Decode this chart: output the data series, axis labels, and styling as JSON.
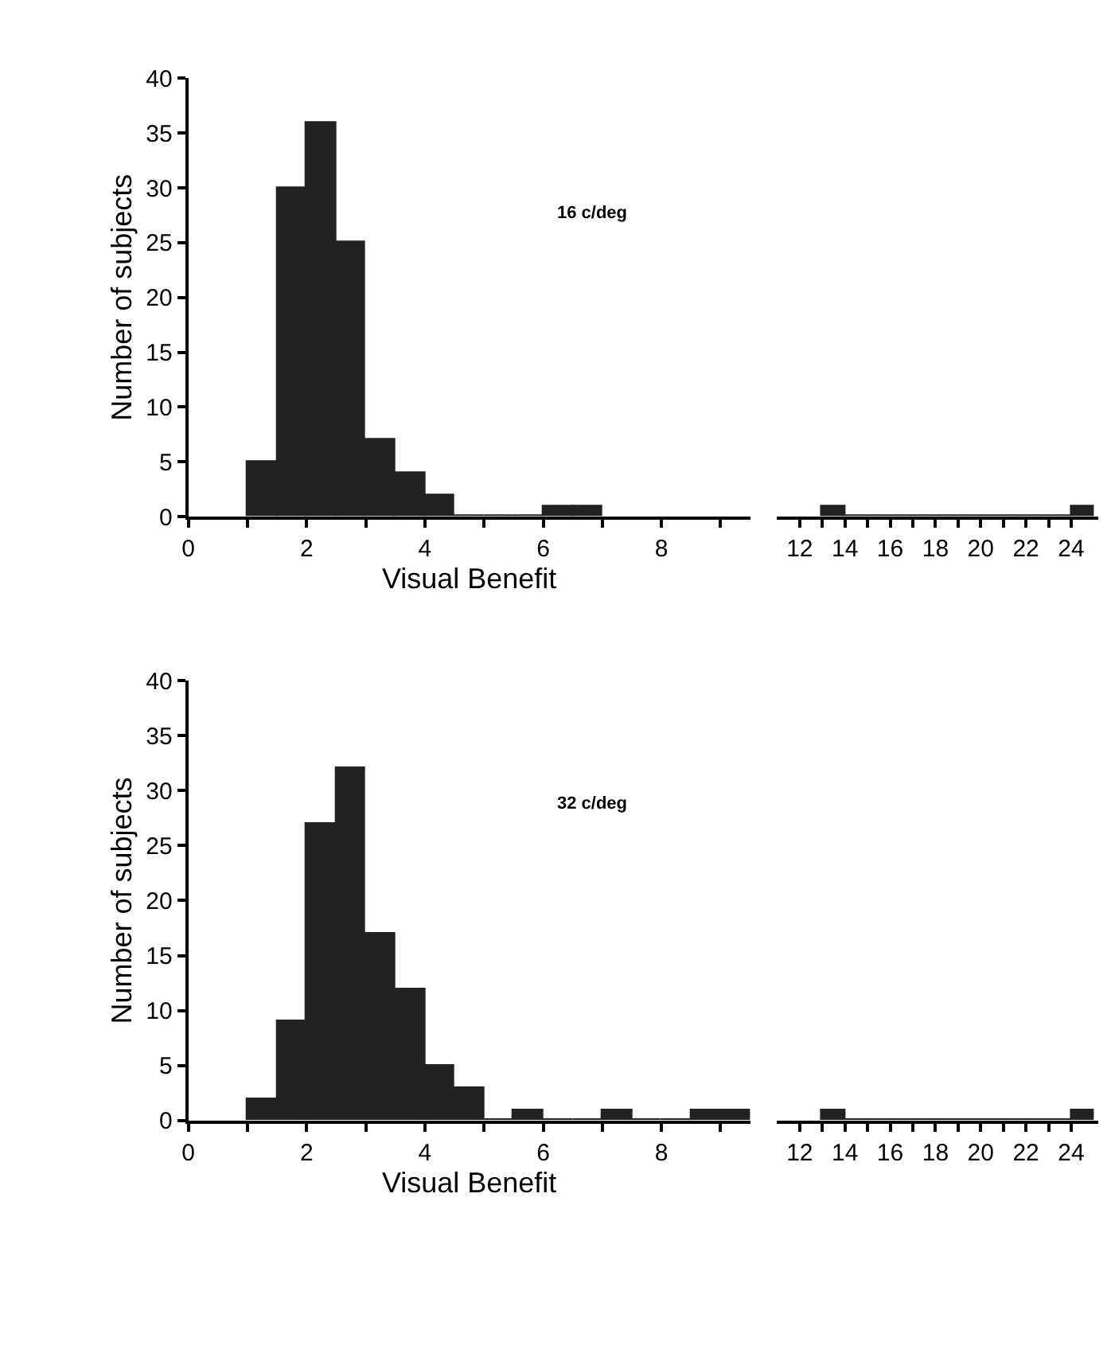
{
  "chart_data": [
    {
      "type": "histogram",
      "xlabel": "Visual Benefit",
      "ylabel": "Number of subjects",
      "annotations": [
        "16 c/deg"
      ],
      "color": "#222222",
      "bins": [
        1,
        1.5,
        2,
        2.5,
        3,
        3.5,
        4,
        4.5,
        5,
        5.5,
        6,
        6.5,
        7
      ],
      "values": [
        5,
        30,
        36,
        25,
        7,
        4,
        2,
        0,
        0,
        0,
        1,
        1
      ],
      "xlim": [
        0,
        9.5
      ],
      "xticks": [
        0,
        {
          "value": 1,
          "label": null
        },
        2,
        {
          "value": 3,
          "label": null
        },
        4,
        {
          "value": 5,
          "label": null
        },
        6,
        {
          "value": 7,
          "label": null
        },
        8,
        {
          "value": 9,
          "label": null
        }
      ],
      "ylim": [
        0,
        40
      ],
      "yticks": [
        0,
        5,
        10,
        15,
        20,
        25,
        30,
        35,
        40
      ]
    },
    {
      "type": "histogram",
      "color": "#222222",
      "bins": [
        13,
        14,
        24,
        25
      ],
      "values": [
        1,
        0,
        1
      ],
      "xlim": [
        11,
        25.2
      ],
      "xticks": [
        12,
        {
          "value": 13,
          "label": null
        },
        14,
        {
          "value": 15,
          "label": null
        },
        16,
        {
          "value": 17,
          "label": null
        },
        18,
        {
          "value": 19,
          "label": null
        },
        20,
        {
          "value": 21,
          "label": null
        },
        22,
        {
          "value": 23,
          "label": null
        },
        24
      ],
      "ylim": [
        0,
        40
      ],
      "tick_labels": "x"
    },
    {
      "type": "histogram",
      "xlabel": "Visual Benefit",
      "ylabel": "Number of subjects",
      "annotations": [
        "32 c/deg"
      ],
      "color": "#222222",
      "bins": [
        1,
        1.5,
        2,
        2.5,
        3,
        3.5,
        4,
        4.5,
        5,
        5.5,
        6,
        6.5,
        7,
        7.5,
        8,
        8.5,
        9,
        9.5
      ],
      "values": [
        2,
        9,
        27,
        32,
        17,
        12,
        5,
        3,
        0,
        1,
        0,
        0,
        1,
        0,
        0,
        1,
        1
      ],
      "xlim": [
        0,
        9.5
      ],
      "xticks": [
        0,
        {
          "value": 1,
          "label": null
        },
        2,
        {
          "value": 3,
          "label": null
        },
        4,
        {
          "value": 5,
          "label": null
        },
        6,
        {
          "value": 7,
          "label": null
        },
        8,
        {
          "value": 9,
          "label": null
        }
      ],
      "ylim": [
        0,
        40
      ],
      "yticks": [
        0,
        5,
        10,
        15,
        20,
        25,
        30,
        35,
        40
      ]
    },
    {
      "type": "histogram",
      "color": "#222222",
      "bins": [
        13,
        14,
        24,
        25
      ],
      "values": [
        1,
        0,
        1
      ],
      "xlim": [
        11,
        25.2
      ],
      "xticks": [
        12,
        {
          "value": 13,
          "label": null
        },
        14,
        {
          "value": 15,
          "label": null
        },
        16,
        {
          "value": 17,
          "label": null
        },
        18,
        {
          "value": 19,
          "label": null
        },
        20,
        {
          "value": 21,
          "label": null
        },
        22,
        {
          "value": 23,
          "label": null
        },
        24
      ],
      "ylim": [
        0,
        40
      ],
      "tick_labels": "x"
    }
  ]
}
